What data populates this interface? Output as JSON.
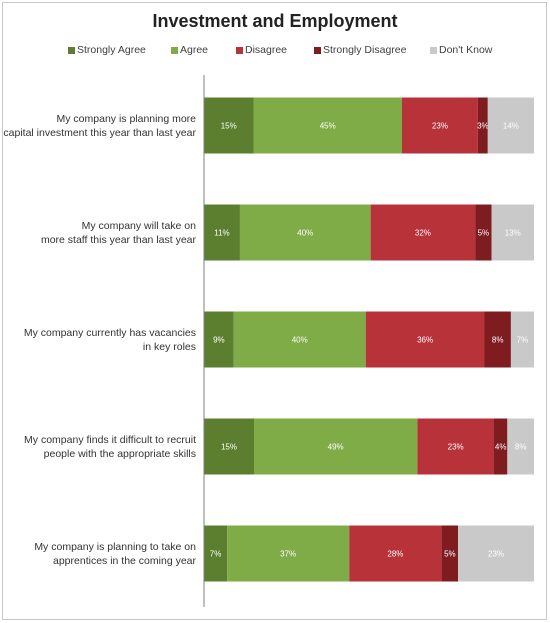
{
  "chart_data": {
    "type": "bar",
    "orientation": "horizontal",
    "stacked": true,
    "title": "Investment and Employment",
    "categories": [
      "My company is planning more capital investment this year than last year",
      "My company will take on more staff this year than last year",
      "My company currently has vacancies in key roles",
      "My company finds it difficult to recruit people with the appropriate skills",
      "My company is planning to take on apprentices in the coming year"
    ],
    "category_lines": [
      [
        "My company is planning more",
        "capital investment this year than last year"
      ],
      [
        "My company will take on",
        "more staff this year than last year"
      ],
      [
        "My company currently has vacancies",
        "in key roles"
      ],
      [
        "My company finds it difficult to recruit",
        "people with the appropriate skills"
      ],
      [
        "My company is planning to take on",
        "apprentices in the coming year"
      ]
    ],
    "series": [
      {
        "name": "Strongly Agree",
        "color": "#5b7f2e",
        "values": [
          15,
          11,
          9,
          15,
          7
        ],
        "labels": [
          "15%",
          "11%",
          "9%",
          "15%",
          "7%"
        ]
      },
      {
        "name": "Agree",
        "color": "#7fac46",
        "values": [
          45,
          40,
          40,
          49,
          37
        ],
        "labels": [
          "45%",
          "40%",
          "40%",
          "49%",
          "37%"
        ]
      },
      {
        "name": "Disagree",
        "color": "#b8323a",
        "values": [
          23,
          32,
          36,
          23,
          28
        ],
        "labels": [
          "23%",
          "32%",
          "36%",
          "23%",
          "28%"
        ]
      },
      {
        "name": "Strongly Disagree",
        "color": "#7e1c20",
        "values": [
          3,
          5,
          8,
          4,
          5
        ],
        "labels": [
          "3%",
          "5%",
          "8%",
          "4%",
          "5%"
        ]
      },
      {
        "name": "Don't Know",
        "color": "#c9c9c9",
        "values": [
          14,
          13,
          7,
          8,
          23
        ],
        "labels": [
          "14%",
          "13%",
          "7%",
          "8%",
          "23%"
        ]
      }
    ],
    "legend_position": "top",
    "grid": false
  }
}
